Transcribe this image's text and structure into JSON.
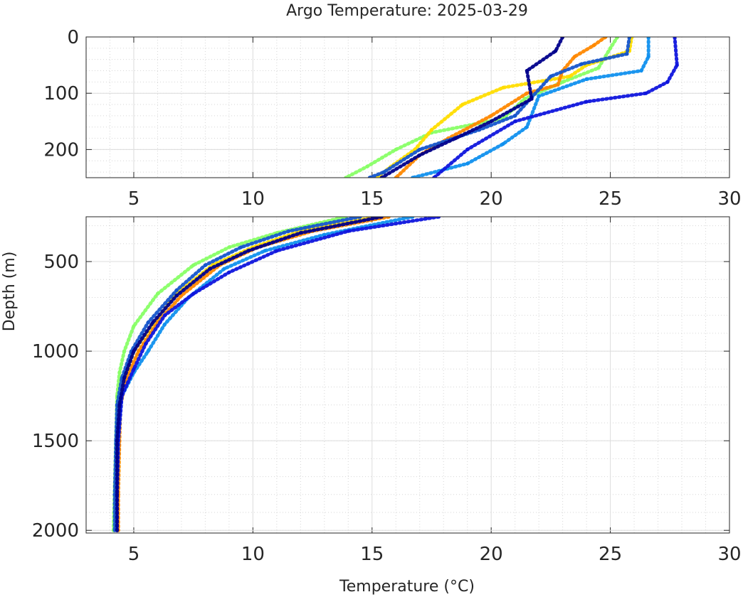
{
  "chart_data": {
    "type": "line",
    "title": "Argo Temperature: 2025-03-29",
    "xlabel": "Temperature (°C)",
    "ylabel": "Depth (m)",
    "grid": true,
    "minor_grid": true,
    "panels": [
      {
        "name": "upper",
        "xlim": [
          3,
          30
        ],
        "ylim": [
          250,
          0
        ],
        "xticks": [
          "5",
          "10",
          "15",
          "20",
          "25",
          "30"
        ],
        "yticks": [
          "0",
          "100",
          "200"
        ],
        "series": [
          {
            "color": "#88ff66",
            "points": [
              [
                25.3,
                0
              ],
              [
                25.0,
                20
              ],
              [
                24.5,
                55
              ],
              [
                23.0,
                80
              ],
              [
                21.4,
                110
              ],
              [
                20.5,
                145
              ],
              [
                17.5,
                170
              ],
              [
                16.0,
                200
              ],
              [
                14.8,
                230
              ],
              [
                13.9,
                250
              ]
            ]
          },
          {
            "color": "#ffdd00",
            "points": [
              [
                25.9,
                0
              ],
              [
                25.8,
                25
              ],
              [
                24.0,
                50
              ],
              [
                23.3,
                70
              ],
              [
                20.5,
                90
              ],
              [
                18.8,
                120
              ],
              [
                17.5,
                165
              ],
              [
                16.8,
                200
              ],
              [
                15.8,
                230
              ],
              [
                15.2,
                250
              ]
            ]
          },
          {
            "color": "#ff8800",
            "points": [
              [
                24.8,
                0
              ],
              [
                24.3,
                15
              ],
              [
                23.5,
                35
              ],
              [
                23.0,
                60
              ],
              [
                22.8,
                85
              ],
              [
                21.5,
                100
              ],
              [
                20.0,
                140
              ],
              [
                18.2,
                180
              ],
              [
                17.0,
                210
              ],
              [
                16.0,
                250
              ]
            ]
          },
          {
            "color": "#1090ee",
            "points": [
              [
                26.6,
                0
              ],
              [
                26.6,
                35
              ],
              [
                26.3,
                60
              ],
              [
                24.0,
                75
              ],
              [
                22.0,
                105
              ],
              [
                21.5,
                160
              ],
              [
                20.5,
                190
              ],
              [
                19.0,
                225
              ],
              [
                16.7,
                250
              ]
            ]
          },
          {
            "color": "#1555cc",
            "points": [
              [
                25.8,
                0
              ],
              [
                25.7,
                30
              ],
              [
                23.8,
                48
              ],
              [
                22.5,
                70
              ],
              [
                21.0,
                140
              ],
              [
                19.5,
                165
              ],
              [
                17.0,
                200
              ],
              [
                15.5,
                240
              ],
              [
                14.9,
                250
              ]
            ]
          },
          {
            "color": "#0f15dd",
            "points": [
              [
                27.7,
                0
              ],
              [
                27.8,
                50
              ],
              [
                27.4,
                80
              ],
              [
                26.5,
                100
              ],
              [
                24.0,
                115
              ],
              [
                21.0,
                150
              ],
              [
                19.0,
                200
              ],
              [
                17.6,
                250
              ]
            ]
          },
          {
            "color": "#00008b",
            "points": [
              [
                23.0,
                0
              ],
              [
                22.7,
                25
              ],
              [
                21.5,
                60
              ],
              [
                21.7,
                110
              ],
              [
                20.0,
                150
              ],
              [
                18.5,
                180
              ],
              [
                17.0,
                210
              ],
              [
                15.4,
                250
              ]
            ]
          }
        ]
      },
      {
        "name": "lower",
        "xlim": [
          3,
          30
        ],
        "ylim": [
          2015,
          250
        ],
        "xticks": [
          "5",
          "10",
          "15",
          "20",
          "25",
          "30"
        ],
        "yticks": [
          "500",
          "1000",
          "1500",
          "2000"
        ],
        "series": [
          {
            "color": "#88ff66",
            "points": [
              [
                13.9,
                250
              ],
              [
                11.0,
                340
              ],
              [
                9.0,
                420
              ],
              [
                7.5,
                520
              ],
              [
                6.0,
                680
              ],
              [
                5.0,
                860
              ],
              [
                4.6,
                1000
              ],
              [
                4.4,
                1120
              ],
              [
                4.3,
                1250
              ],
              [
                4.25,
                1500
              ],
              [
                4.2,
                1750
              ],
              [
                4.15,
                2000
              ]
            ]
          },
          {
            "color": "#ffdd00",
            "points": [
              [
                15.2,
                250
              ],
              [
                12.0,
                330
              ],
              [
                10.0,
                420
              ],
              [
                8.3,
                520
              ],
              [
                6.8,
                680
              ],
              [
                5.8,
                850
              ],
              [
                5.0,
                1000
              ],
              [
                4.6,
                1150
              ],
              [
                4.4,
                1300
              ],
              [
                4.35,
                1500
              ],
              [
                4.3,
                1800
              ],
              [
                4.3,
                2000
              ]
            ]
          },
          {
            "color": "#ff8800",
            "points": [
              [
                15.7,
                250
              ],
              [
                12.5,
                330
              ],
              [
                10.2,
                420
              ],
              [
                8.6,
                520
              ],
              [
                7.0,
                690
              ],
              [
                6.0,
                840
              ],
              [
                5.2,
                1000
              ],
              [
                4.7,
                1150
              ],
              [
                4.45,
                1300
              ],
              [
                4.4,
                1500
              ],
              [
                4.35,
                1800
              ],
              [
                4.35,
                2000
              ]
            ]
          },
          {
            "color": "#1090ee",
            "points": [
              [
                16.7,
                250
              ],
              [
                13.0,
                350
              ],
              [
                10.5,
                440
              ],
              [
                8.8,
                540
              ],
              [
                7.3,
                700
              ],
              [
                6.3,
                850
              ],
              [
                5.6,
                1000
              ],
              [
                5.0,
                1120
              ],
              [
                4.5,
                1250
              ],
              [
                4.35,
                1500
              ],
              [
                4.3,
                1800
              ],
              [
                4.3,
                2000
              ]
            ]
          },
          {
            "color": "#1555cc",
            "points": [
              [
                14.5,
                250
              ],
              [
                11.5,
                330
              ],
              [
                9.5,
                420
              ],
              [
                8.0,
                520
              ],
              [
                6.8,
                660
              ],
              [
                5.6,
                840
              ],
              [
                4.9,
                1000
              ],
              [
                4.5,
                1150
              ],
              [
                4.3,
                1300
              ],
              [
                4.25,
                1500
              ],
              [
                4.2,
                1800
              ],
              [
                4.2,
                2000
              ]
            ]
          },
          {
            "color": "#0f15dd",
            "points": [
              [
                17.8,
                250
              ],
              [
                14.0,
                330
              ],
              [
                11.0,
                440
              ],
              [
                9.0,
                560
              ],
              [
                7.5,
                680
              ],
              [
                6.3,
                800
              ],
              [
                5.5,
                960
              ],
              [
                5.0,
                1100
              ],
              [
                4.5,
                1250
              ],
              [
                4.35,
                1500
              ],
              [
                4.3,
                1800
              ],
              [
                4.3,
                2000
              ]
            ]
          },
          {
            "color": "#00008b",
            "points": [
              [
                15.4,
                250
              ],
              [
                12.0,
                340
              ],
              [
                9.8,
                440
              ],
              [
                8.2,
                540
              ],
              [
                6.8,
                690
              ],
              [
                5.8,
                840
              ],
              [
                5.0,
                1000
              ],
              [
                4.6,
                1150
              ],
              [
                4.4,
                1300
              ],
              [
                4.3,
                1500
              ],
              [
                4.3,
                1800
              ],
              [
                4.3,
                2000
              ]
            ]
          }
        ]
      }
    ]
  }
}
